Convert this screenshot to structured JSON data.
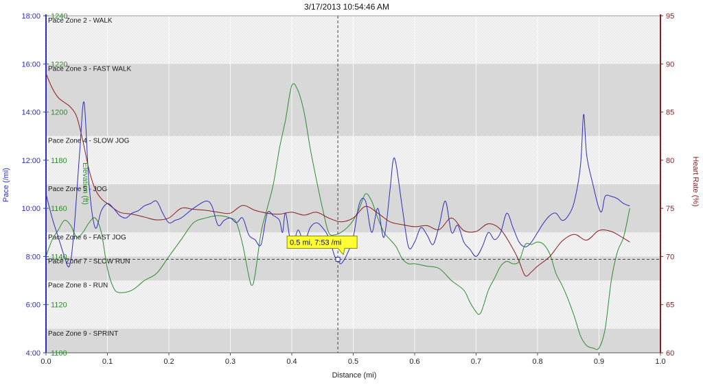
{
  "chart_data": {
    "type": "line",
    "title": "3/17/2013 10:54:46 AM",
    "xlabel": "Distance (mi)",
    "xlim": [
      0,
      1.0
    ],
    "x_ticks": [
      "0.0",
      "0.1",
      "0.2",
      "0.3",
      "0.4",
      "0.5",
      "0.6",
      "0.7",
      "0.8",
      "0.9",
      "1.0"
    ],
    "pace_axis": {
      "label": "Pace (/mi)",
      "color": "#2b2bc4",
      "lim": [
        4,
        18
      ],
      "ticks": [
        "4:00",
        "6:00",
        "8:00",
        "10:00",
        "12:00",
        "14:00",
        "16:00",
        "18:00"
      ]
    },
    "elevation_axis": {
      "label": "Elevation (ft)",
      "color": "#2e8b2e",
      "lim": [
        1100,
        1240
      ],
      "ticks": [
        "1100",
        "1120",
        "1140",
        "1160",
        "1180",
        "1200",
        "1220",
        "1240"
      ]
    },
    "heart_rate_axis": {
      "label": "Heart Rate (%)",
      "color": "#8b1a1a",
      "lim": [
        60,
        95
      ],
      "ticks": [
        "60",
        "65",
        "70",
        "75",
        "80",
        "85",
        "90",
        "95"
      ]
    },
    "pace_zones": [
      {
        "label": "Pace Zone 2 - WALK",
        "from": 16,
        "to": 18,
        "shade": "light"
      },
      {
        "label": "Pace Zone 3 - FAST WALK",
        "from": 13,
        "to": 16,
        "shade": "dark"
      },
      {
        "label": "Pace Zone 4 - SLOW JOG",
        "from": 11,
        "to": 13,
        "shade": "light"
      },
      {
        "label": "Pace Zone 5 - JOG",
        "from": 9,
        "to": 11,
        "shade": "dark"
      },
      {
        "label": "Pace Zone 6 - FAST JOG",
        "from": 8,
        "to": 9,
        "shade": "light"
      },
      {
        "label": "Pace Zone 7 - SLOW RUN",
        "from": 7,
        "to": 8,
        "shade": "dark"
      },
      {
        "label": "Pace Zone 8 - RUN",
        "from": 5,
        "to": 7,
        "shade": "light"
      },
      {
        "label": "Pace Zone 9 - SPRINT",
        "from": 4,
        "to": 5,
        "shade": "dark"
      }
    ],
    "series": [
      {
        "name": "Pace",
        "axis": "pace",
        "color": "#2b2bc4",
        "x": [
          0.0,
          0.01,
          0.02,
          0.03,
          0.038,
          0.045,
          0.055,
          0.062,
          0.07,
          0.08,
          0.09,
          0.1,
          0.11,
          0.12,
          0.13,
          0.14,
          0.15,
          0.16,
          0.17,
          0.18,
          0.19,
          0.2,
          0.21,
          0.22,
          0.24,
          0.26,
          0.27,
          0.28,
          0.29,
          0.3,
          0.31,
          0.32,
          0.33,
          0.34,
          0.35,
          0.36,
          0.37,
          0.38,
          0.385,
          0.39,
          0.4,
          0.41,
          0.42,
          0.43,
          0.44,
          0.45,
          0.46,
          0.47,
          0.475,
          0.48,
          0.49,
          0.5,
          0.51,
          0.52,
          0.53,
          0.54,
          0.55,
          0.56,
          0.565,
          0.57,
          0.58,
          0.59,
          0.6,
          0.61,
          0.62,
          0.63,
          0.64,
          0.65,
          0.66,
          0.67,
          0.68,
          0.69,
          0.7,
          0.71,
          0.72,
          0.73,
          0.74,
          0.75,
          0.76,
          0.77,
          0.78,
          0.79,
          0.8,
          0.81,
          0.82,
          0.83,
          0.84,
          0.85,
          0.86,
          0.87,
          0.875,
          0.88,
          0.89,
          0.9,
          0.905,
          0.91,
          0.92,
          0.93,
          0.94,
          0.95
        ],
        "values": [
          10.6,
          9.6,
          8.8,
          8.0,
          7.6,
          8.9,
          12.4,
          14.4,
          11.0,
          9.2,
          9.9,
          10.2,
          10.0,
          9.7,
          9.6,
          9.8,
          9.9,
          10.1,
          10.2,
          10.3,
          9.8,
          9.4,
          9.5,
          9.6,
          10.0,
          10.3,
          10.1,
          9.3,
          9.5,
          9.6,
          9.4,
          9.6,
          8.9,
          8.7,
          8.5,
          9.8,
          9.7,
          9.5,
          9.0,
          9.8,
          8.4,
          9.1,
          8.6,
          9.2,
          9.4,
          9.2,
          8.8,
          8.0,
          7.88,
          7.7,
          8.1,
          8.8,
          10.2,
          10.3,
          9.0,
          10.0,
          8.8,
          10.8,
          12.0,
          11.8,
          10.0,
          8.4,
          8.6,
          9.2,
          8.9,
          8.5,
          9.3,
          10.3,
          9.0,
          9.3,
          8.6,
          8.3,
          8.0,
          8.4,
          9.0,
          8.7,
          9.0,
          9.8,
          9.2,
          8.6,
          8.4,
          8.6,
          9.0,
          9.4,
          9.7,
          9.8,
          9.5,
          9.7,
          10.3,
          11.8,
          13.9,
          12.2,
          11.0,
          10.0,
          9.9,
          10.5,
          10.5,
          10.4,
          10.2,
          10.1
        ]
      },
      {
        "name": "Elevation",
        "axis": "elevation",
        "color": "#2e8b2e",
        "x": [
          0.0,
          0.01,
          0.02,
          0.03,
          0.04,
          0.05,
          0.06,
          0.07,
          0.08,
          0.09,
          0.1,
          0.11,
          0.12,
          0.14,
          0.16,
          0.18,
          0.2,
          0.22,
          0.24,
          0.26,
          0.28,
          0.3,
          0.31,
          0.32,
          0.33,
          0.335,
          0.34,
          0.35,
          0.36,
          0.37,
          0.38,
          0.39,
          0.4,
          0.41,
          0.42,
          0.43,
          0.44,
          0.45,
          0.46,
          0.47,
          0.48,
          0.49,
          0.5,
          0.51,
          0.52,
          0.53,
          0.54,
          0.55,
          0.56,
          0.57,
          0.58,
          0.59,
          0.6,
          0.62,
          0.64,
          0.66,
          0.68,
          0.69,
          0.7,
          0.705,
          0.71,
          0.72,
          0.73,
          0.74,
          0.75,
          0.76,
          0.77,
          0.78,
          0.79,
          0.8,
          0.81,
          0.82,
          0.83,
          0.84,
          0.85,
          0.86,
          0.87,
          0.88,
          0.89,
          0.9,
          0.91,
          0.92,
          0.93,
          0.94,
          0.95
        ],
        "values": [
          1140,
          1147,
          1151,
          1155,
          1153,
          1148,
          1150,
          1154,
          1156,
          1150,
          1135,
          1127,
          1125,
          1126,
          1130,
          1133,
          1140,
          1147,
          1154,
          1156,
          1157,
          1156,
          1154,
          1145,
          1132,
          1128,
          1132,
          1150,
          1160,
          1170,
          1185,
          1197,
          1211,
          1209,
          1200,
          1185,
          1172,
          1160,
          1150,
          1149,
          1150,
          1152,
          1155,
          1160,
          1166,
          1163,
          1156,
          1150,
          1147,
          1144,
          1139,
          1137,
          1137,
          1136,
          1135,
          1130,
          1126,
          1121,
          1117,
          1116,
          1118,
          1126,
          1131,
          1136,
          1138,
          1137,
          1138,
          1145,
          1145,
          1146,
          1145,
          1141,
          1133,
          1128,
          1122,
          1115,
          1107,
          1103,
          1102,
          1102,
          1110,
          1130,
          1142,
          1148,
          1160
        ]
      },
      {
        "name": "Heart Rate",
        "axis": "heart_rate",
        "color": "#8b1a1a",
        "x": [
          0.0,
          0.01,
          0.02,
          0.03,
          0.04,
          0.05,
          0.06,
          0.07,
          0.08,
          0.09,
          0.1,
          0.12,
          0.14,
          0.16,
          0.18,
          0.2,
          0.22,
          0.24,
          0.26,
          0.28,
          0.3,
          0.32,
          0.34,
          0.36,
          0.38,
          0.4,
          0.42,
          0.44,
          0.46,
          0.48,
          0.5,
          0.52,
          0.54,
          0.56,
          0.58,
          0.6,
          0.62,
          0.64,
          0.66,
          0.68,
          0.7,
          0.72,
          0.74,
          0.76,
          0.77,
          0.78,
          0.79,
          0.8,
          0.82,
          0.84,
          0.86,
          0.88,
          0.9,
          0.92,
          0.94,
          0.95
        ],
        "values": [
          89,
          87.5,
          86.5,
          86,
          85.5,
          84.5,
          82,
          79,
          77,
          76,
          75.5,
          74.6,
          74.4,
          74.1,
          73.8,
          74.0,
          75.0,
          74.9,
          74.8,
          74.6,
          74.5,
          75.3,
          74.8,
          74.5,
          74.4,
          74.6,
          74.3,
          74.6,
          74.0,
          73.6,
          74.0,
          75.2,
          74.5,
          73.6,
          73.3,
          73.1,
          73.2,
          72.8,
          74.0,
          72.7,
          72.6,
          73.4,
          72.8,
          70.8,
          69.5,
          68.0,
          68.4,
          69.0,
          70.0,
          71.6,
          72.3,
          71.7,
          72.7,
          72.6,
          71.9,
          71.5
        ]
      }
    ],
    "marker": {
      "x": 0.475,
      "pace": 7.883,
      "label": "0.5 mi, 7:53 /mi"
    },
    "grid": true,
    "legend": "none"
  }
}
